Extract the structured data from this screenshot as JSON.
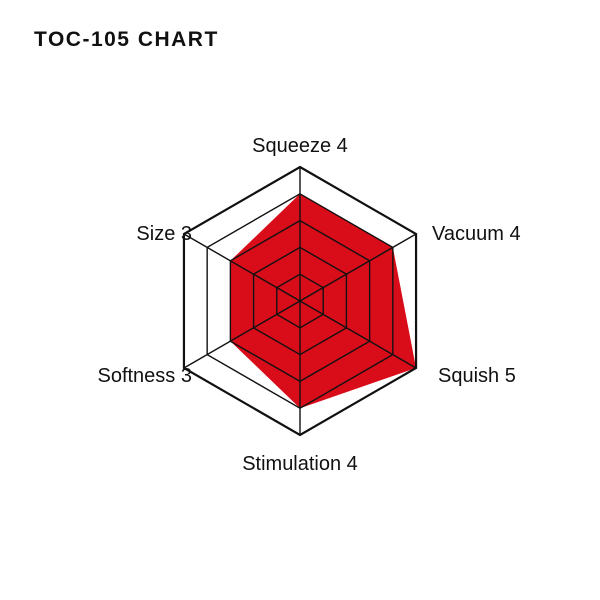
{
  "chart_data": {
    "type": "radar",
    "title": "TOC-105 CHART",
    "categories": [
      "Squeeze",
      "Vacuum",
      "Squish",
      "Stimulation",
      "Softness",
      "Size"
    ],
    "values": [
      4,
      4,
      5,
      4,
      3,
      3
    ],
    "labels": [
      "Squeeze 4",
      "Vacuum 4",
      "Squish 5",
      "Stimulation 4",
      "Softness 3",
      "Size 3"
    ],
    "rlim": [
      0,
      5
    ],
    "rings": 5,
    "fill_color": "#d90d1a",
    "grid_color": "#111111"
  }
}
